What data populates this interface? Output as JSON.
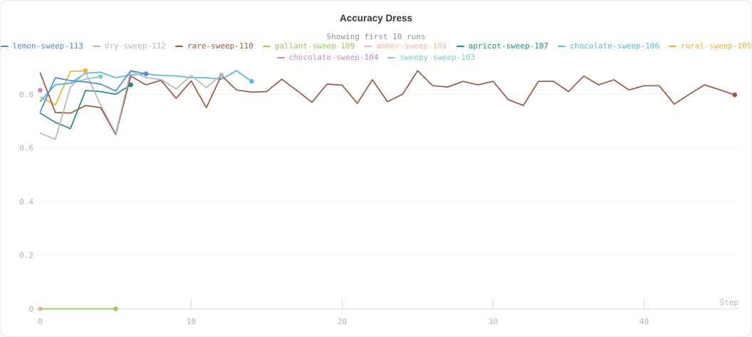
{
  "header": {
    "title": "Accuracy Dress",
    "subtitle": "Showing first 10 runs"
  },
  "colors": {
    "grid_line": "#f4f4f4",
    "axis_line": "#e9e9e9",
    "tick": "#dcdcdc",
    "axis_text": "#b2b5b8",
    "title_text": "#363636",
    "subtitle_text": "#8f9398"
  },
  "chart_data": {
    "type": "line",
    "title": "Accuracy Dress",
    "subtitle": "Showing first 10 runs",
    "legend_position": "top-center",
    "grid": "horizontal-faint",
    "x_axis": {
      "label": "Step",
      "ticks": [
        0,
        10,
        20,
        30,
        40
      ],
      "range": [
        0,
        46.3
      ]
    },
    "y_axis": {
      "label": "",
      "ticks": [
        0,
        0.2,
        0.4,
        0.6,
        0.8
      ],
      "range": [
        0,
        0.905
      ]
    },
    "series": [
      {
        "name": "lemon-sweep-113",
        "color": "#5288d6",
        "start_step": 0,
        "end_marker": true,
        "values": [
          0.735,
          0.862,
          0.851,
          0.846,
          0.838,
          0.812,
          0.888,
          0.876
        ]
      },
      {
        "name": "dry-sweep-112",
        "color": "#b5b8bb",
        "start_step": 0,
        "end_marker": true,
        "values": [
          0.655,
          0.632,
          0.826,
          0.882,
          0.76,
          0.655,
          0.886,
          0.862,
          0.855,
          0.82,
          0.87,
          0.825,
          0.872
        ]
      },
      {
        "name": "rare-sweep-110",
        "color": "#9a5845",
        "start_step": 0,
        "end_marker": true,
        "values": [
          0.88,
          0.732,
          0.73,
          0.758,
          0.75,
          0.65,
          0.868,
          0.835,
          0.852,
          0.785,
          0.85,
          0.75,
          0.87,
          0.816,
          0.808,
          0.81,
          0.856,
          0.814,
          0.77,
          0.838,
          0.834,
          0.766,
          0.854,
          0.772,
          0.8,
          0.888,
          0.832,
          0.827,
          0.848,
          0.835,
          0.848,
          0.78,
          0.758,
          0.848,
          0.848,
          0.81,
          0.868,
          0.835,
          0.854,
          0.816,
          0.832,
          0.832,
          0.763,
          0.8,
          0.835,
          0.817,
          0.798
        ]
      },
      {
        "name": "gallant-sweep-109",
        "color": "#a0c75e",
        "start_step": 0,
        "end_marker": true,
        "values": [
          0,
          0,
          0,
          0,
          0,
          0
        ]
      },
      {
        "name": "amber-sweep-108",
        "color": "#f2b9a8",
        "start_step": 0,
        "end_marker": true,
        "values": [
          0
        ]
      },
      {
        "name": "apricot-sweep-107",
        "color": "#1f9183",
        "start_step": 0,
        "end_marker": true,
        "values": [
          0.73,
          0.695,
          0.672,
          0.814,
          0.81,
          0.8,
          0.835
        ]
      },
      {
        "name": "chocolate-sweep-106",
        "color": "#56bbd9",
        "start_step": 0,
        "end_marker": true,
        "values": [
          0.773,
          0.835,
          0.842,
          0.878,
          0.882,
          0.862,
          0.872,
          0.876,
          0.87,
          0.868,
          0.862,
          0.862,
          0.856,
          0.888,
          0.848
        ]
      },
      {
        "name": "rural-sweep-105",
        "color": "#ecb22f",
        "start_step": 0,
        "end_marker": true,
        "values": [
          0.79,
          0.76,
          0.885,
          0.888
        ]
      },
      {
        "name": "chocolate-sweep-104",
        "color": "#c687cb",
        "start_step": 0,
        "end_marker": true,
        "values": [
          0.815
        ]
      },
      {
        "name": "sweepy-sweep-103",
        "color": "#7bcfc6",
        "start_step": 0,
        "end_marker": true,
        "values": [
          0.775,
          0.836,
          0.84,
          0.856,
          0.866
        ]
      }
    ]
  }
}
